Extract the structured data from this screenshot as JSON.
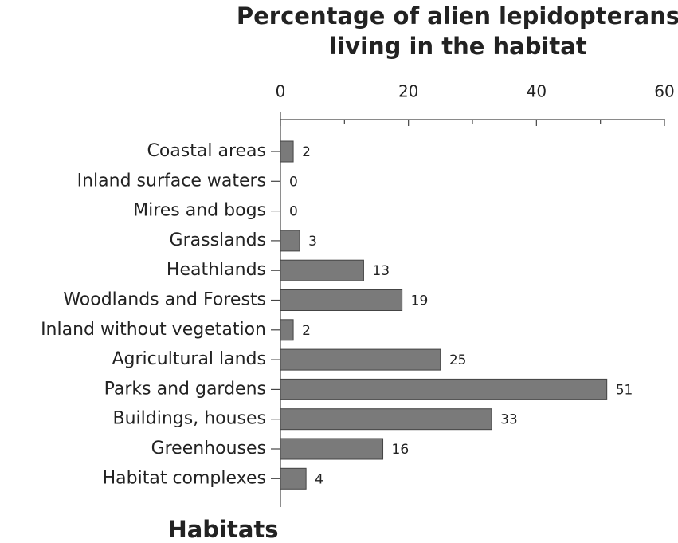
{
  "chart_data": {
    "type": "bar",
    "orientation": "horizontal",
    "title": [
      "Percentage of alien lepidopterans",
      "living in the habitat"
    ],
    "y_label": "Habitats",
    "categories": [
      "Coastal areas",
      "Inland surface waters",
      "Mires and bogs",
      "Grasslands",
      "Heathlands",
      "Woodlands and Forests",
      "Inland without vegetation",
      "Agricultural lands",
      "Parks and gardens",
      "Buildings, houses",
      "Greenhouses",
      "Habitat complexes"
    ],
    "values": [
      2,
      0,
      0,
      3,
      13,
      19,
      2,
      25,
      51,
      33,
      16,
      4
    ],
    "color": "#7a7a7a",
    "xlim": [
      0,
      60
    ],
    "xticks": [
      0,
      20,
      40,
      60
    ],
    "minor_ticks": [
      10,
      30,
      50
    ]
  }
}
